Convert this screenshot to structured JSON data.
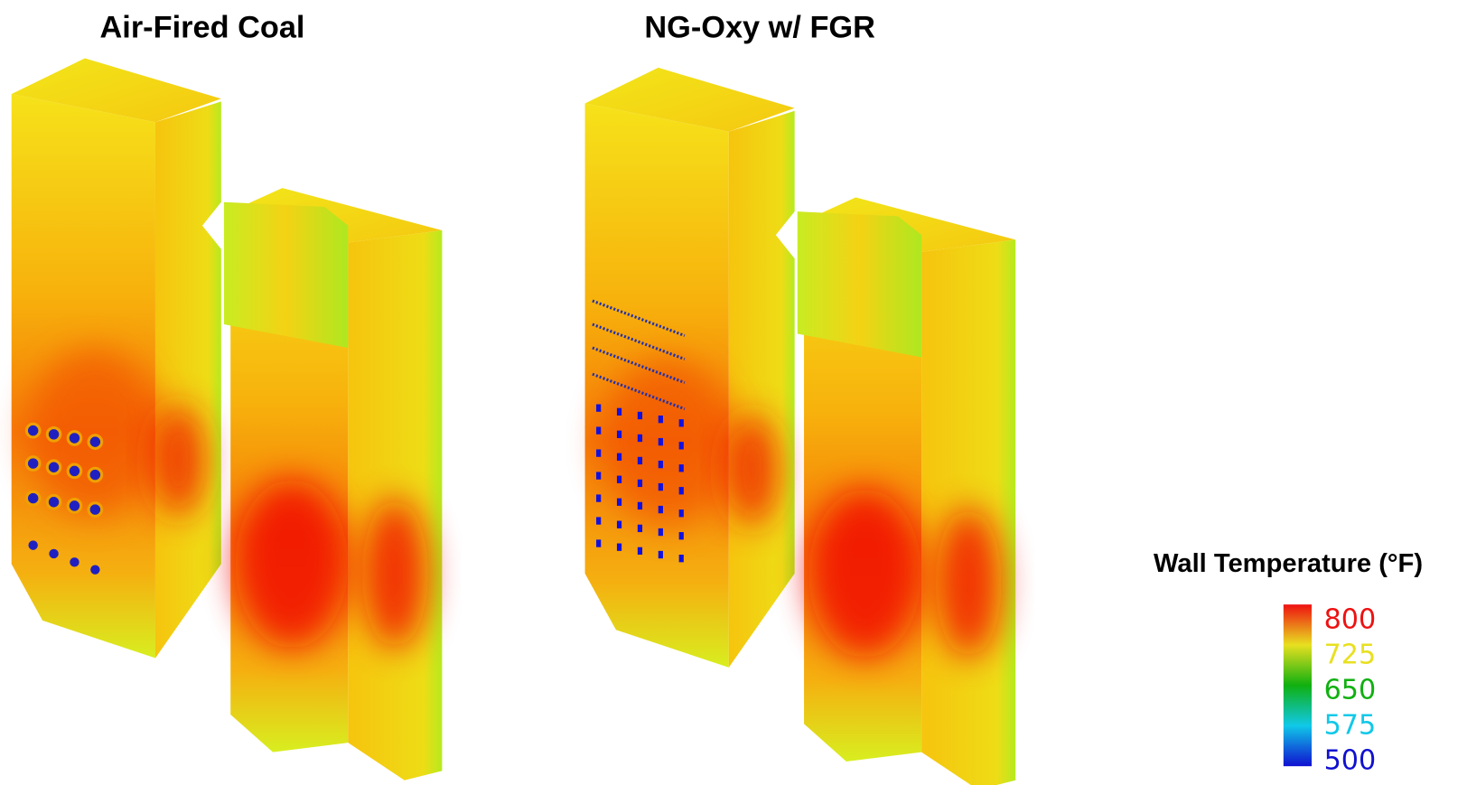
{
  "panels": [
    {
      "title": "Air-Fired Coal"
    },
    {
      "title": "NG-Oxy w/ FGR"
    }
  ],
  "legend": {
    "title": "Wall Temperature (°F)",
    "ticks": [
      800,
      725,
      650,
      575,
      500
    ],
    "colors": [
      "#ee1111",
      "#e8e020",
      "#10b010",
      "#10c8e8",
      "#1010d0"
    ]
  }
}
